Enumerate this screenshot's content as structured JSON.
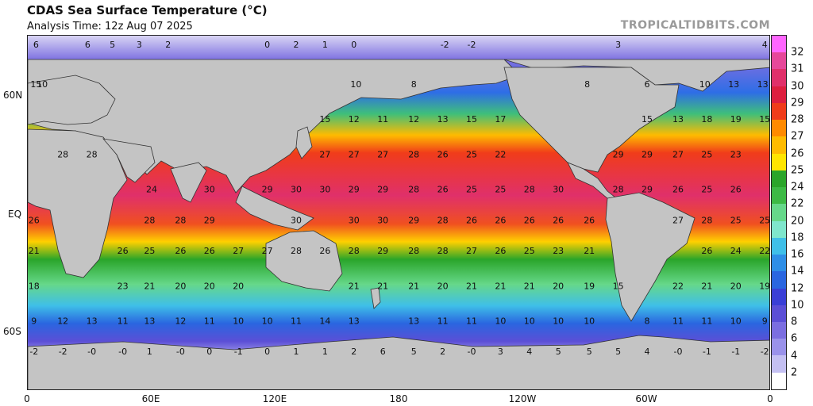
{
  "header": {
    "title": "CDAS Sea Surface Temperature (°C)",
    "subtitle": "Analysis Time: 12z Aug 07 2025",
    "credit": "TROPICALTIDBITS.COM"
  },
  "axes": {
    "lat_labels": [
      {
        "text": "60N",
        "lat": 60
      },
      {
        "text": "EQ",
        "lat": 0
      },
      {
        "text": "60S",
        "lat": -60
      }
    ],
    "lon_labels": [
      {
        "text": "0",
        "lon": 0
      },
      {
        "text": "60E",
        "lon": 60
      },
      {
        "text": "120E",
        "lon": 120
      },
      {
        "text": "180",
        "lon": 180
      },
      {
        "text": "120W",
        "lon": 240
      },
      {
        "text": "60W",
        "lon": 300
      },
      {
        "text": "0",
        "lon": 360
      }
    ]
  },
  "colorbar": {
    "labels": [
      "32",
      "31",
      "30",
      "29",
      "28",
      "27",
      "26",
      "25",
      "24",
      "22",
      "20",
      "18",
      "16",
      "14",
      "12",
      "10",
      "8",
      "6",
      "4",
      "2"
    ],
    "colors": [
      "#ff66ff",
      "#e6489a",
      "#e0306a",
      "#dd1f3f",
      "#f03c1a",
      "#ff8a00",
      "#ffbb00",
      "#ffe500",
      "#2aa52a",
      "#3dba45",
      "#66d88a",
      "#7fe6cc",
      "#3fbfe8",
      "#2e8ee6",
      "#2a66e0",
      "#3a3fd6",
      "#5b4fd6",
      "#7b6ee0",
      "#9a92ea",
      "#c4c0f2",
      "#ffffff"
    ]
  },
  "map_values": [
    {
      "t": "6",
      "lon": 4,
      "lat": 82
    },
    {
      "t": "6",
      "lon": 29,
      "lat": 82
    },
    {
      "t": "5",
      "lon": 41,
      "lat": 82
    },
    {
      "t": "3",
      "lon": 54,
      "lat": 82
    },
    {
      "t": "2",
      "lon": 68,
      "lat": 82
    },
    {
      "t": "0",
      "lon": 116,
      "lat": 82
    },
    {
      "t": "2",
      "lon": 130,
      "lat": 82
    },
    {
      "t": "1",
      "lon": 144,
      "lat": 82
    },
    {
      "t": "0",
      "lon": 158,
      "lat": 82
    },
    {
      "t": "-2",
      "lon": 202,
      "lat": 82
    },
    {
      "t": "-2",
      "lon": 215,
      "lat": 82
    },
    {
      "t": "3",
      "lon": 286,
      "lat": 82
    },
    {
      "t": "4",
      "lon": 357,
      "lat": 82
    },
    {
      "t": "15",
      "lon": 4,
      "lat": 64
    },
    {
      "t": "10",
      "lon": 7,
      "lat": 64
    },
    {
      "t": "10",
      "lon": 159,
      "lat": 64
    },
    {
      "t": "8",
      "lon": 187,
      "lat": 64
    },
    {
      "t": "8",
      "lon": 271,
      "lat": 64
    },
    {
      "t": "6",
      "lon": 300,
      "lat": 64
    },
    {
      "t": "10",
      "lon": 328,
      "lat": 64
    },
    {
      "t": "13",
      "lon": 342,
      "lat": 64
    },
    {
      "t": "13",
      "lon": 356,
      "lat": 64
    },
    {
      "t": "15",
      "lon": 144,
      "lat": 48
    },
    {
      "t": "12",
      "lon": 158,
      "lat": 48
    },
    {
      "t": "11",
      "lon": 172,
      "lat": 48
    },
    {
      "t": "12",
      "lon": 187,
      "lat": 48
    },
    {
      "t": "13",
      "lon": 201,
      "lat": 48
    },
    {
      "t": "15",
      "lon": 215,
      "lat": 48
    },
    {
      "t": "17",
      "lon": 229,
      "lat": 48
    },
    {
      "t": "15",
      "lon": 300,
      "lat": 48
    },
    {
      "t": "13",
      "lon": 315,
      "lat": 48
    },
    {
      "t": "18",
      "lon": 329,
      "lat": 48
    },
    {
      "t": "19",
      "lon": 343,
      "lat": 48
    },
    {
      "t": "15",
      "lon": 357,
      "lat": 48
    },
    {
      "t": "28",
      "lon": 17,
      "lat": 32
    },
    {
      "t": "28",
      "lon": 31,
      "lat": 32
    },
    {
      "t": "27",
      "lon": 144,
      "lat": 32
    },
    {
      "t": "27",
      "lon": 158,
      "lat": 32
    },
    {
      "t": "27",
      "lon": 172,
      "lat": 32
    },
    {
      "t": "28",
      "lon": 187,
      "lat": 32
    },
    {
      "t": "26",
      "lon": 201,
      "lat": 32
    },
    {
      "t": "25",
      "lon": 215,
      "lat": 32
    },
    {
      "t": "22",
      "lon": 229,
      "lat": 32
    },
    {
      "t": "29",
      "lon": 286,
      "lat": 32
    },
    {
      "t": "29",
      "lon": 300,
      "lat": 32
    },
    {
      "t": "27",
      "lon": 315,
      "lat": 32
    },
    {
      "t": "25",
      "lon": 329,
      "lat": 32
    },
    {
      "t": "23",
      "lon": 343,
      "lat": 32
    },
    {
      "t": "24",
      "lon": 60,
      "lat": 16
    },
    {
      "t": "30",
      "lon": 88,
      "lat": 16
    },
    {
      "t": "29",
      "lon": 116,
      "lat": 16
    },
    {
      "t": "30",
      "lon": 130,
      "lat": 16
    },
    {
      "t": "30",
      "lon": 144,
      "lat": 16
    },
    {
      "t": "29",
      "lon": 158,
      "lat": 16
    },
    {
      "t": "29",
      "lon": 172,
      "lat": 16
    },
    {
      "t": "28",
      "lon": 187,
      "lat": 16
    },
    {
      "t": "26",
      "lon": 201,
      "lat": 16
    },
    {
      "t": "25",
      "lon": 215,
      "lat": 16
    },
    {
      "t": "25",
      "lon": 229,
      "lat": 16
    },
    {
      "t": "28",
      "lon": 243,
      "lat": 16
    },
    {
      "t": "30",
      "lon": 257,
      "lat": 16
    },
    {
      "t": "28",
      "lon": 286,
      "lat": 16
    },
    {
      "t": "29",
      "lon": 300,
      "lat": 16
    },
    {
      "t": "26",
      "lon": 315,
      "lat": 16
    },
    {
      "t": "25",
      "lon": 329,
      "lat": 16
    },
    {
      "t": "26",
      "lon": 343,
      "lat": 16
    },
    {
      "t": "26",
      "lon": 3,
      "lat": 2
    },
    {
      "t": "28",
      "lon": 59,
      "lat": 2
    },
    {
      "t": "28",
      "lon": 74,
      "lat": 2
    },
    {
      "t": "29",
      "lon": 88,
      "lat": 2
    },
    {
      "t": "30",
      "lon": 130,
      "lat": 2
    },
    {
      "t": "30",
      "lon": 158,
      "lat": 2
    },
    {
      "t": "30",
      "lon": 172,
      "lat": 2
    },
    {
      "t": "29",
      "lon": 187,
      "lat": 2
    },
    {
      "t": "28",
      "lon": 201,
      "lat": 2
    },
    {
      "t": "26",
      "lon": 215,
      "lat": 2
    },
    {
      "t": "26",
      "lon": 229,
      "lat": 2
    },
    {
      "t": "26",
      "lon": 243,
      "lat": 2
    },
    {
      "t": "26",
      "lon": 257,
      "lat": 2
    },
    {
      "t": "26",
      "lon": 272,
      "lat": 2
    },
    {
      "t": "27",
      "lon": 315,
      "lat": 2
    },
    {
      "t": "28",
      "lon": 329,
      "lat": 2
    },
    {
      "t": "25",
      "lon": 343,
      "lat": 2
    },
    {
      "t": "25",
      "lon": 357,
      "lat": 2
    },
    {
      "t": "21",
      "lon": 3,
      "lat": -12
    },
    {
      "t": "26",
      "lon": 46,
      "lat": -12
    },
    {
      "t": "25",
      "lon": 59,
      "lat": -12
    },
    {
      "t": "26",
      "lon": 74,
      "lat": -12
    },
    {
      "t": "26",
      "lon": 88,
      "lat": -12
    },
    {
      "t": "27",
      "lon": 102,
      "lat": -12
    },
    {
      "t": "27",
      "lon": 116,
      "lat": -12
    },
    {
      "t": "28",
      "lon": 130,
      "lat": -12
    },
    {
      "t": "26",
      "lon": 144,
      "lat": -12
    },
    {
      "t": "28",
      "lon": 158,
      "lat": -12
    },
    {
      "t": "29",
      "lon": 172,
      "lat": -12
    },
    {
      "t": "28",
      "lon": 187,
      "lat": -12
    },
    {
      "t": "28",
      "lon": 201,
      "lat": -12
    },
    {
      "t": "27",
      "lon": 215,
      "lat": -12
    },
    {
      "t": "26",
      "lon": 229,
      "lat": -12
    },
    {
      "t": "25",
      "lon": 243,
      "lat": -12
    },
    {
      "t": "23",
      "lon": 257,
      "lat": -12
    },
    {
      "t": "21",
      "lon": 272,
      "lat": -12
    },
    {
      "t": "26",
      "lon": 329,
      "lat": -12
    },
    {
      "t": "24",
      "lon": 343,
      "lat": -12
    },
    {
      "t": "22",
      "lon": 357,
      "lat": -12
    },
    {
      "t": "18",
      "lon": 3,
      "lat": -28
    },
    {
      "t": "23",
      "lon": 46,
      "lat": -28
    },
    {
      "t": "21",
      "lon": 59,
      "lat": -28
    },
    {
      "t": "20",
      "lon": 74,
      "lat": -28
    },
    {
      "t": "20",
      "lon": 88,
      "lat": -28
    },
    {
      "t": "20",
      "lon": 102,
      "lat": -28
    },
    {
      "t": "21",
      "lon": 158,
      "lat": -28
    },
    {
      "t": "21",
      "lon": 172,
      "lat": -28
    },
    {
      "t": "21",
      "lon": 187,
      "lat": -28
    },
    {
      "t": "20",
      "lon": 201,
      "lat": -28
    },
    {
      "t": "21",
      "lon": 215,
      "lat": -28
    },
    {
      "t": "21",
      "lon": 229,
      "lat": -28
    },
    {
      "t": "21",
      "lon": 243,
      "lat": -28
    },
    {
      "t": "20",
      "lon": 257,
      "lat": -28
    },
    {
      "t": "19",
      "lon": 272,
      "lat": -28
    },
    {
      "t": "15",
      "lon": 286,
      "lat": -28
    },
    {
      "t": "22",
      "lon": 315,
      "lat": -28
    },
    {
      "t": "21",
      "lon": 329,
      "lat": -28
    },
    {
      "t": "20",
      "lon": 343,
      "lat": -28
    },
    {
      "t": "19",
      "lon": 357,
      "lat": -28
    },
    {
      "t": "9",
      "lon": 3,
      "lat": -44
    },
    {
      "t": "12",
      "lon": 17,
      "lat": -44
    },
    {
      "t": "13",
      "lon": 31,
      "lat": -44
    },
    {
      "t": "11",
      "lon": 46,
      "lat": -44
    },
    {
      "t": "13",
      "lon": 59,
      "lat": -44
    },
    {
      "t": "12",
      "lon": 74,
      "lat": -44
    },
    {
      "t": "11",
      "lon": 88,
      "lat": -44
    },
    {
      "t": "10",
      "lon": 102,
      "lat": -44
    },
    {
      "t": "10",
      "lon": 116,
      "lat": -44
    },
    {
      "t": "11",
      "lon": 130,
      "lat": -44
    },
    {
      "t": "14",
      "lon": 144,
      "lat": -44
    },
    {
      "t": "13",
      "lon": 158,
      "lat": -44
    },
    {
      "t": "13",
      "lon": 187,
      "lat": -44
    },
    {
      "t": "11",
      "lon": 201,
      "lat": -44
    },
    {
      "t": "11",
      "lon": 215,
      "lat": -44
    },
    {
      "t": "10",
      "lon": 229,
      "lat": -44
    },
    {
      "t": "10",
      "lon": 243,
      "lat": -44
    },
    {
      "t": "10",
      "lon": 257,
      "lat": -44
    },
    {
      "t": "10",
      "lon": 272,
      "lat": -44
    },
    {
      "t": "8",
      "lon": 300,
      "lat": -44
    },
    {
      "t": "11",
      "lon": 315,
      "lat": -44
    },
    {
      "t": "11",
      "lon": 329,
      "lat": -44
    },
    {
      "t": "10",
      "lon": 343,
      "lat": -44
    },
    {
      "t": "9",
      "lon": 357,
      "lat": -44
    },
    {
      "t": "-2",
      "lon": 3,
      "lat": -58
    },
    {
      "t": "-2",
      "lon": 17,
      "lat": -58
    },
    {
      "t": "-0",
      "lon": 31,
      "lat": -58
    },
    {
      "t": "-0",
      "lon": 46,
      "lat": -58
    },
    {
      "t": "1",
      "lon": 59,
      "lat": -58
    },
    {
      "t": "-0",
      "lon": 74,
      "lat": -58
    },
    {
      "t": "0",
      "lon": 88,
      "lat": -58
    },
    {
      "t": "-1",
      "lon": 102,
      "lat": -58
    },
    {
      "t": "0",
      "lon": 116,
      "lat": -58
    },
    {
      "t": "1",
      "lon": 130,
      "lat": -58
    },
    {
      "t": "1",
      "lon": 144,
      "lat": -58
    },
    {
      "t": "2",
      "lon": 158,
      "lat": -58
    },
    {
      "t": "6",
      "lon": 172,
      "lat": -58
    },
    {
      "t": "5",
      "lon": 187,
      "lat": -58
    },
    {
      "t": "2",
      "lon": 201,
      "lat": -58
    },
    {
      "t": "-0",
      "lon": 215,
      "lat": -58
    },
    {
      "t": "3",
      "lon": 229,
      "lat": -58
    },
    {
      "t": "4",
      "lon": 243,
      "lat": -58
    },
    {
      "t": "5",
      "lon": 257,
      "lat": -58
    },
    {
      "t": "5",
      "lon": 272,
      "lat": -58
    },
    {
      "t": "5",
      "lon": 286,
      "lat": -58
    },
    {
      "t": "4",
      "lon": 300,
      "lat": -58
    },
    {
      "t": "-0",
      "lon": 315,
      "lat": -58
    },
    {
      "t": "-1",
      "lon": 329,
      "lat": -58
    },
    {
      "t": "-1",
      "lon": 343,
      "lat": -58
    },
    {
      "t": "-2",
      "lon": 357,
      "lat": -58
    }
  ]
}
